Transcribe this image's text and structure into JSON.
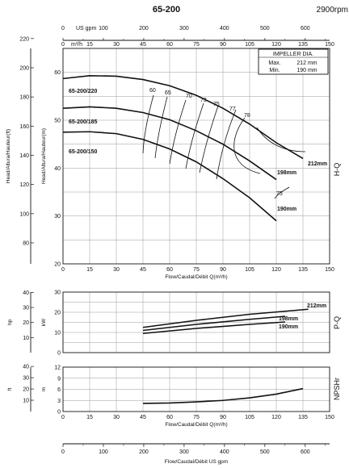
{
  "header": {
    "model": "65-200",
    "speed": "2900rpm"
  },
  "impeller_legend": {
    "title": "IMPELLER DIA.",
    "max_label": "Max.",
    "max_value": "212 mm",
    "min_label": "Min.",
    "min_value": "190 mm"
  },
  "chart_data": [
    {
      "id": "hq",
      "type": "line",
      "side_label": "H-Q",
      "xlabel": "Flow/Caudal/Débit Q(m³/h)",
      "top_axis_label": "US gpm",
      "top_axis_label2": "m³/h",
      "ylabel_m": "Head/Altura/Hauteur(m)",
      "ylabel_ft": "Head/Altura/Hauteur(ft)",
      "xlim": [
        0,
        150
      ],
      "ylim": [
        20,
        65
      ],
      "x_ticks": [
        "0",
        "15",
        "30",
        "45",
        "60",
        "75",
        "90",
        "105",
        "120",
        "135",
        "150"
      ],
      "gpm_ticks": [
        "0",
        "100",
        "200",
        "300",
        "400",
        "500",
        "600"
      ],
      "m_ticks": [
        "20",
        "30",
        "40",
        "50",
        "60"
      ],
      "ft_ticks": [
        "80",
        "100",
        "120",
        "140",
        "160",
        "180",
        "200",
        "220"
      ],
      "model_labels": [
        "65-200/220",
        "65-200/185",
        "65-200/150"
      ],
      "series": [
        {
          "name": "212mm",
          "x": [
            0,
            15,
            30,
            45,
            60,
            75,
            90,
            105,
            120,
            135
          ],
          "y": [
            58.7,
            59.3,
            59.2,
            58.5,
            57.2,
            55.2,
            52.5,
            49.2,
            45.3,
            42.0
          ]
        },
        {
          "name": "198mm",
          "x": [
            0,
            15,
            30,
            45,
            60,
            75,
            90,
            105,
            120
          ],
          "y": [
            52.5,
            52.8,
            52.5,
            51.6,
            50.1,
            47.8,
            45.0,
            41.5,
            37.6
          ]
        },
        {
          "name": "190mm",
          "x": [
            0,
            15,
            30,
            45,
            60,
            75,
            90,
            105,
            120
          ],
          "y": [
            47.5,
            47.6,
            47.2,
            46.0,
            44.0,
            41.3,
            37.8,
            33.8,
            29.0
          ]
        }
      ],
      "efficiency_labels": [
        "60",
        "65",
        "70",
        "73",
        "75",
        "77",
        "78",
        "75"
      ]
    },
    {
      "id": "power",
      "type": "line",
      "side_label": "P-Q",
      "ylabel_kw": "kW",
      "ylabel_hp": "hp",
      "xlim": [
        0,
        150
      ],
      "ylim": [
        0,
        30
      ],
      "x_ticks": [
        "0",
        "15",
        "30",
        "45",
        "60",
        "75",
        "90",
        "105",
        "120",
        "135",
        "150"
      ],
      "kw_ticks": [
        "0",
        "10",
        "20",
        "30"
      ],
      "hp_ticks": [
        "10",
        "20",
        "30",
        "40"
      ],
      "series": [
        {
          "name": "212mm",
          "x": [
            45,
            75,
            105,
            138
          ],
          "y": [
            12.5,
            16.0,
            19.0,
            21.5
          ]
        },
        {
          "name": "198mm",
          "x": [
            45,
            75,
            105,
            125
          ],
          "y": [
            11.0,
            14.0,
            16.5,
            18.0
          ]
        },
        {
          "name": "190mm",
          "x": [
            45,
            75,
            105,
            125
          ],
          "y": [
            9.5,
            12.0,
            14.0,
            15.2
          ]
        }
      ]
    },
    {
      "id": "npsh",
      "type": "line",
      "side_label": "NPSHr",
      "xlabel": "Flow/Caudal/Débit Q(m³/h)",
      "ylabel_m": "m",
      "ylabel_ft": "ft",
      "xlim": [
        0,
        150
      ],
      "ylim": [
        0,
        12
      ],
      "x_ticks": [
        "0",
        "15",
        "30",
        "45",
        "60",
        "75",
        "90",
        "105",
        "120",
        "135",
        "150"
      ],
      "m_ticks": [
        "0",
        "3",
        "6",
        "9",
        "12"
      ],
      "ft_ticks": [
        "10",
        "20",
        "30",
        "40"
      ],
      "series": [
        {
          "name": "NPSHr",
          "x": [
            45,
            60,
            75,
            90,
            105,
            120,
            135
          ],
          "y": [
            2.2,
            2.3,
            2.6,
            3.0,
            3.7,
            4.7,
            6.2
          ]
        }
      ]
    },
    {
      "id": "gpm_axis",
      "type": "axis",
      "xlabel": "Flow/Caudal/Débit  US gpm",
      "gpm_ticks": [
        "0",
        "100",
        "200",
        "300",
        "400",
        "500",
        "600"
      ]
    }
  ]
}
